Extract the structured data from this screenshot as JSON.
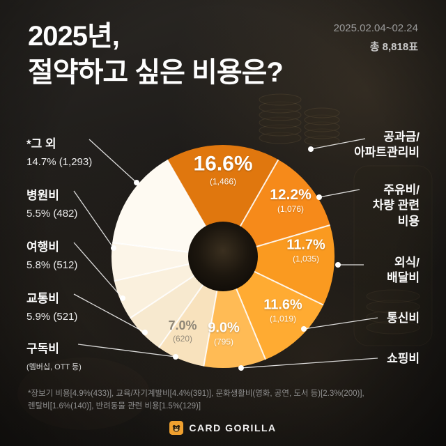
{
  "header": {
    "title_line1": "2025년,",
    "title_line2": "절약하고 싶은 비용은?",
    "date_range": "2025.02.04~02.24",
    "total_votes": "총 8,818표"
  },
  "chart_data": {
    "type": "pie",
    "title": "2025년, 절약하고 싶은 비용은?",
    "total_votes": 8818,
    "start_angle_deg": -30,
    "legend_position": "around",
    "slices": [
      {
        "label": "공과금/아파트관리비",
        "percent": 16.6,
        "count": 1466,
        "count_display": "(1,466)",
        "color": "#e0770e"
      },
      {
        "label": "주유비/차량 관련 비용",
        "percent": 12.2,
        "count": 1076,
        "count_display": "(1,076)",
        "color": "#f68a1a"
      },
      {
        "label": "외식/배달비",
        "percent": 11.7,
        "count": 1035,
        "count_display": "(1,035)",
        "color": "#fa9a20"
      },
      {
        "label": "통신비",
        "percent": 11.6,
        "count": 1019,
        "count_display": "(1,019)",
        "color": "#ffab32"
      },
      {
        "label": "쇼핑비",
        "percent": 9.0,
        "count": 795,
        "count_display": "(795)",
        "color": "#ffbb55"
      },
      {
        "label": "구독비 (멤버십, OTT 등)",
        "percent": 7.0,
        "count": 620,
        "count_display": "(620)",
        "color": "#f8e2bd"
      },
      {
        "label": "교통비",
        "percent": 5.9,
        "count": 521,
        "count_display": "(521)",
        "color": "#f7e9cf"
      },
      {
        "label": "여행비",
        "percent": 5.8,
        "count": 512,
        "count_display": "(512)",
        "color": "#faf0dd"
      },
      {
        "label": "병원비",
        "percent": 5.5,
        "count": 482,
        "count_display": "(482)",
        "color": "#fcf5e8"
      },
      {
        "label": "*그 외",
        "percent": 14.7,
        "count": 1293,
        "count_display": "(1,293)",
        "color": "#fefaf2"
      }
    ],
    "others_breakdown": [
      {
        "label": "장보기 비용",
        "percent": 4.9,
        "count": 433
      },
      {
        "label": "교육/자기계발비",
        "percent": 4.4,
        "count": 391
      },
      {
        "label": "문화생활비(영화, 공연, 도서 등)",
        "percent": 2.3,
        "count": 200
      },
      {
        "label": "렌탈비",
        "percent": 1.6,
        "count": 140
      },
      {
        "label": "반려동물 관련 비용",
        "percent": 1.5,
        "count": 129
      }
    ]
  },
  "labels": {
    "left": [
      {
        "name": "*그 외",
        "value": "14.7% (1,293)"
      },
      {
        "name": "병원비",
        "value": "5.5% (482)"
      },
      {
        "name": "여행비",
        "value": "5.8% (512)"
      },
      {
        "name": "교통비",
        "value": "5.9% (521)"
      },
      {
        "name": "구독비",
        "value": "(멤버십, OTT 등)"
      }
    ],
    "right": [
      {
        "name": "공과금/\n아파트관리비"
      },
      {
        "name": "주유비/\n차량 관련\n비용"
      },
      {
        "name": "외식/\n배달비"
      },
      {
        "name": "통신비"
      },
      {
        "name": "쇼핑비"
      }
    ]
  },
  "footnote": "*장보기 비용[4.9%(433)], 교육/자기계발비[4.4%(391)], 문화생활비(영화, 공연, 도서 등)[2.3%(200)],\n렌탈비[1.6%(140)], 반려동물 관련 비용[1.5%(129)]",
  "footer": {
    "brand": "CARD GORILLA"
  }
}
